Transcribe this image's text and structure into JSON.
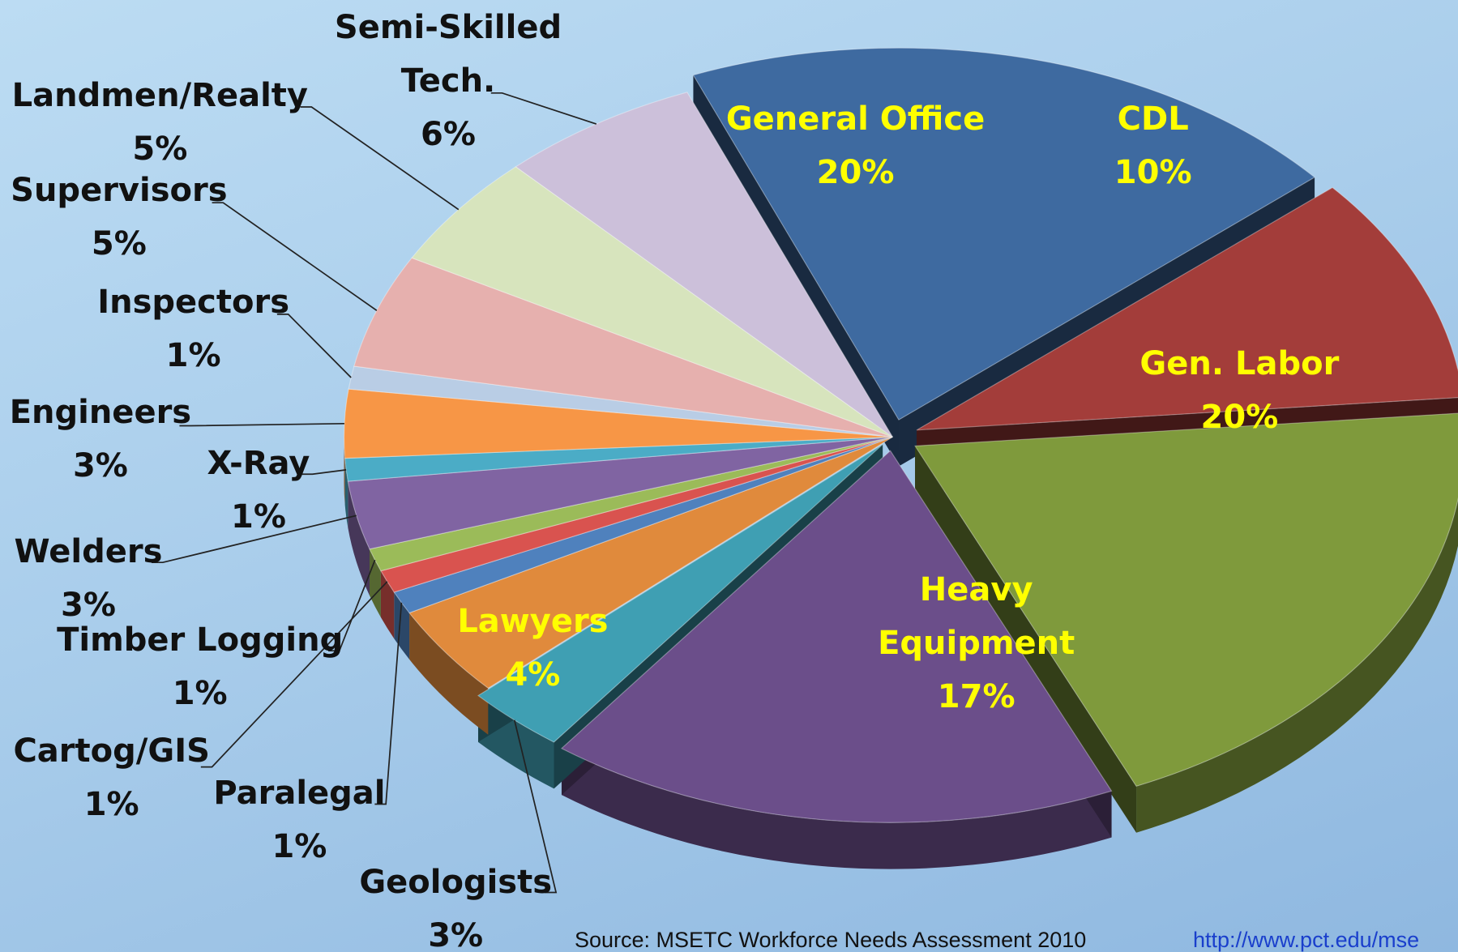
{
  "chart_data": {
    "type": "pie",
    "categories": [
      "General Office",
      "CDL",
      "Gen. Labor",
      "Heavy Equipment",
      "Geologists",
      "Lawyers",
      "Paralegal",
      "Cartog/GIS",
      "Timber Logging",
      "Welders",
      "X-Ray",
      "Engineers",
      "Inspectors",
      "Supervisors",
      "Landmen/Realty",
      "Semi-Skilled Tech."
    ],
    "values": [
      20,
      10,
      20,
      17,
      3,
      4,
      1,
      1,
      1,
      3,
      1,
      3,
      1,
      5,
      5,
      6
    ],
    "value_labels": [
      "20%",
      "10%",
      "20%",
      "17%",
      "3%",
      "4%",
      "1%",
      "1%",
      "1%",
      "3%",
      "1%",
      "3%",
      "1%",
      "5%",
      "5%",
      "6%"
    ],
    "colors": [
      "#3e6aa0",
      "#a33d3a",
      "#7f9a3c",
      "#6b4e8a",
      "#3f9fb3",
      "#e08a3c",
      "#4f81bd",
      "#d9534f",
      "#9bbb59",
      "#8064a2",
      "#4bacc6",
      "#f79646",
      "#b9cde5",
      "#e6b0ae",
      "#d7e4bd",
      "#ccc0da"
    ],
    "source": "Source: MSETC Workforce Needs Assessment 2010",
    "url": "http://www.pct.edu/mse"
  }
}
